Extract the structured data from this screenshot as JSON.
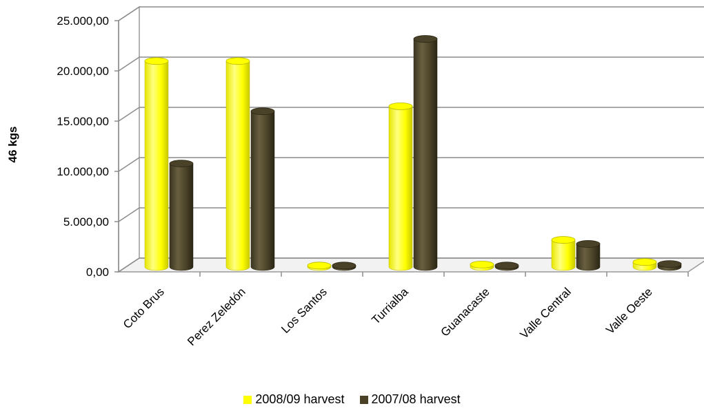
{
  "chart_data": {
    "type": "bar",
    "style": "3d-cylinder",
    "title": "",
    "xlabel": "",
    "ylabel": "46 kgs",
    "ylim": [
      0,
      25000
    ],
    "yticks": [
      "0,00",
      "5.000,00",
      "10.000,00",
      "15.000,00",
      "20.000,00",
      "25.000,00"
    ],
    "categories": [
      "Coto Brus",
      "Perez Zeledón",
      "Los Santos",
      "Turrialba",
      "Guanacaste",
      "Valle Central",
      "Valle Oeste"
    ],
    "series": [
      {
        "name": "2008/09 harvest",
        "color": "#ffff00",
        "values": [
          20500,
          20500,
          150,
          16000,
          250,
          2700,
          500
        ]
      },
      {
        "name": "2007/08 harvest",
        "color": "#4a4228",
        "values": [
          10300,
          15500,
          150,
          22700,
          150,
          2300,
          300
        ]
      }
    ],
    "grid": true,
    "legend_position": "bottom"
  }
}
